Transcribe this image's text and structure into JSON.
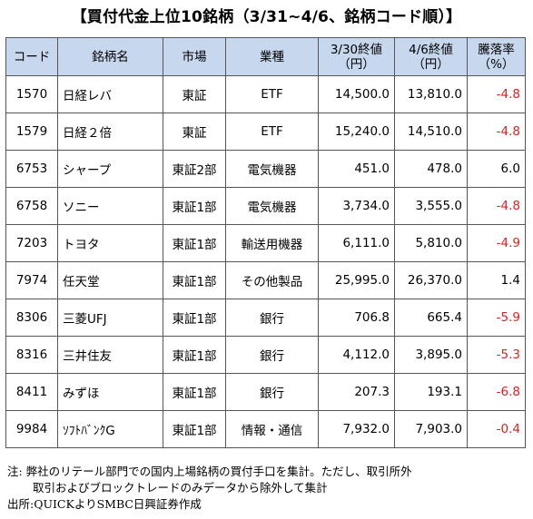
{
  "title": "【買付代金上位10銘柄（3/31~4/6、銘柄コード順）】",
  "columns": [
    "コード",
    "銘柄名",
    "市場",
    "業種",
    "3/30終値\n（円）",
    "4/6終値\n（円）",
    "騰落率\n（%）"
  ],
  "rows": [
    {
      "code": "1570",
      "name": "日経レバ",
      "market": "東証",
      "sector": "ETF",
      "close1": "14,500.0",
      "close2": "13,810.0",
      "change": "-4.8"
    },
    {
      "code": "1579",
      "name": "日経２倍",
      "market": "東証",
      "sector": "ETF",
      "close1": "15,240.0",
      "close2": "14,510.0",
      "change": "-4.8"
    },
    {
      "code": "6753",
      "name": "シャープ",
      "market": "東証2部",
      "sector": "電気機器",
      "close1": "451.0",
      "close2": "478.0",
      "change": "6.0"
    },
    {
      "code": "6758",
      "name": "ソニー",
      "market": "東証1部",
      "sector": "電気機器",
      "close1": "3,734.0",
      "close2": "3,555.0",
      "change": "-4.8"
    },
    {
      "code": "7203",
      "name": "トヨタ",
      "market": "東証1部",
      "sector": "輸送用機器",
      "close1": "6,111.0",
      "close2": "5,810.0",
      "change": "-4.9"
    },
    {
      "code": "7974",
      "name": "任天堂",
      "market": "東証1部",
      "sector": "その他製品",
      "close1": "25,995.0",
      "close2": "26,370.0",
      "change": "1.4"
    },
    {
      "code": "8306",
      "name": "三菱UFJ",
      "market": "東証1部",
      "sector": "銀行",
      "close1": "706.8",
      "close2": "665.4",
      "change": "-5.9"
    },
    {
      "code": "8316",
      "name": "三井住友",
      "market": "東証1部",
      "sector": "銀行",
      "close1": "4,112.0",
      "close2": "3,895.0",
      "change": "-5.3"
    },
    {
      "code": "8411",
      "name": "みずほ",
      "market": "東証1部",
      "sector": "銀行",
      "close1": "207.3",
      "close2": "193.1",
      "change": "-6.8"
    },
    {
      "code": "9984",
      "name": "ｿﾌﾄﾊﾞﾝｸG",
      "market": "東証1部",
      "sector": "情報・通信",
      "close1": "7,932.0",
      "close2": "7,903.0",
      "change": "-0.4"
    }
  ],
  "notes": {
    "line1": "注:  弊社のリテール部門での国内上場銘柄の買付手口を集計。ただし、取引所外",
    "line2": "取引およびブロックトレードのみデータから除外して集計",
    "line3": "出所:QUICKよりSMBC日興証券作成"
  },
  "colors": {
    "header_bg": "#c7d7ee",
    "negative": "#e02020"
  }
}
